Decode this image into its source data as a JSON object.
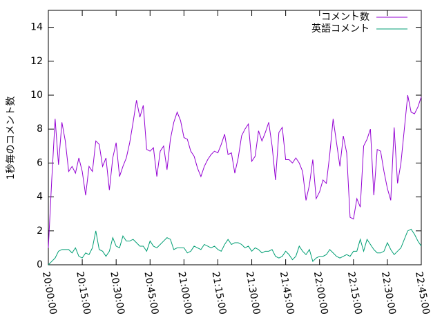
{
  "chart_data": {
    "type": "line",
    "ylabel": "1秒毎のコメント数",
    "x": [
      "20:00:00",
      "20:01:30",
      "20:03:00",
      "20:04:30",
      "20:06:00",
      "20:07:30",
      "20:09:00",
      "20:10:30",
      "20:12:00",
      "20:13:30",
      "20:15:00",
      "20:16:30",
      "20:18:00",
      "20:19:30",
      "20:21:00",
      "20:22:30",
      "20:24:00",
      "20:25:30",
      "20:27:00",
      "20:28:30",
      "20:30:00",
      "20:31:30",
      "20:33:00",
      "20:34:30",
      "20:36:00",
      "20:37:30",
      "20:39:00",
      "20:40:30",
      "20:42:00",
      "20:43:30",
      "20:45:00",
      "20:46:30",
      "20:48:00",
      "20:49:30",
      "20:51:00",
      "20:52:30",
      "20:54:00",
      "20:55:30",
      "20:57:00",
      "20:58:30",
      "21:00:00",
      "21:01:30",
      "21:03:00",
      "21:04:30",
      "21:06:00",
      "21:07:30",
      "21:09:00",
      "21:10:30",
      "21:12:00",
      "21:13:30",
      "21:15:00",
      "21:16:30",
      "21:18:00",
      "21:19:30",
      "21:21:00",
      "21:22:30",
      "21:24:00",
      "21:25:30",
      "21:27:00",
      "21:28:30",
      "21:30:00",
      "21:31:30",
      "21:33:00",
      "21:34:30",
      "21:36:00",
      "21:37:30",
      "21:39:00",
      "21:40:30",
      "21:42:00",
      "21:43:30",
      "21:45:00",
      "21:46:30",
      "21:48:00",
      "21:49:30",
      "21:51:00",
      "21:52:30",
      "21:54:00",
      "21:55:30",
      "21:57:00",
      "21:58:30",
      "22:00:00",
      "22:01:30",
      "22:03:00",
      "22:04:30",
      "22:06:00",
      "22:07:30",
      "22:09:00",
      "22:10:30",
      "22:12:00",
      "22:13:30",
      "22:15:00",
      "22:16:30",
      "22:18:00",
      "22:19:30",
      "22:21:00",
      "22:22:30",
      "22:24:00",
      "22:25:30",
      "22:27:00",
      "22:28:30",
      "22:30:00",
      "22:31:30",
      "22:33:00",
      "22:34:30",
      "22:36:00",
      "22:37:30",
      "22:39:00",
      "22:40:30",
      "22:42:00",
      "22:43:30",
      "22:45:00"
    ],
    "series": [
      {
        "name": "コメント数",
        "color": "#9400d3",
        "values": [
          1.0,
          5.0,
          8.6,
          5.9,
          8.4,
          7.3,
          5.5,
          5.8,
          5.4,
          6.3,
          5.5,
          4.1,
          5.8,
          5.5,
          7.3,
          7.1,
          5.8,
          6.3,
          4.4,
          6.3,
          7.2,
          5.2,
          5.8,
          6.3,
          7.2,
          8.4,
          9.7,
          8.7,
          9.4,
          6.8,
          6.7,
          6.9,
          5.2,
          6.7,
          7.0,
          5.6,
          7.4,
          8.4,
          9.0,
          8.5,
          7.5,
          7.4,
          6.7,
          6.4,
          5.7,
          5.2,
          5.8,
          6.2,
          6.5,
          6.7,
          6.6,
          7.1,
          7.7,
          6.5,
          6.6,
          5.4,
          6.3,
          7.6,
          8.0,
          8.3,
          6.1,
          6.4,
          7.9,
          7.3,
          7.8,
          8.4,
          7.0,
          5.0,
          7.8,
          8.1,
          6.2,
          6.2,
          6.0,
          6.3,
          6.0,
          5.5,
          3.8,
          4.7,
          6.2,
          3.9,
          4.3,
          5.0,
          4.8,
          6.5,
          8.6,
          7.2,
          5.8,
          7.6,
          6.6,
          2.8,
          2.7,
          3.9,
          3.4,
          7.0,
          7.4,
          8.0,
          4.1,
          6.8,
          6.7,
          5.5,
          4.5,
          3.8,
          8.1,
          4.8,
          6.0,
          8.0,
          10.0,
          9.0,
          8.9,
          9.3,
          9.9
        ]
      },
      {
        "name": "英語コメント",
        "color": "#009e73",
        "values": [
          0.0,
          0.2,
          0.4,
          0.8,
          0.9,
          0.9,
          0.9,
          0.7,
          1.0,
          0.5,
          0.4,
          0.7,
          0.6,
          1.0,
          2.0,
          0.9,
          0.8,
          0.5,
          0.8,
          1.6,
          1.1,
          1.0,
          1.7,
          1.4,
          1.4,
          1.5,
          1.3,
          1.1,
          1.1,
          0.8,
          1.4,
          1.1,
          1.0,
          1.2,
          1.4,
          1.6,
          1.5,
          0.9,
          1.0,
          1.0,
          1.0,
          0.7,
          0.8,
          1.1,
          1.0,
          0.9,
          1.2,
          1.1,
          1.0,
          1.1,
          0.9,
          0.8,
          1.2,
          1.5,
          1.2,
          1.3,
          1.3,
          1.2,
          1.0,
          1.1,
          0.8,
          1.0,
          0.9,
          0.7,
          0.8,
          0.8,
          0.9,
          0.5,
          0.4,
          0.5,
          0.8,
          0.6,
          0.3,
          0.5,
          1.1,
          0.8,
          0.6,
          0.9,
          0.2,
          0.4,
          0.5,
          0.5,
          0.6,
          0.9,
          0.7,
          0.5,
          0.4,
          0.5,
          0.6,
          0.5,
          0.8,
          0.8,
          1.5,
          0.8,
          1.5,
          1.2,
          0.9,
          0.7,
          0.7,
          0.8,
          1.3,
          0.9,
          0.6,
          0.8,
          1.0,
          1.5,
          2.0,
          2.1,
          1.8,
          1.4,
          1.1
        ]
      }
    ],
    "xlim": [
      "20:00:00",
      "22:45:00"
    ],
    "xticks": [
      "20:00:00",
      "20:15:00",
      "20:30:00",
      "20:45:00",
      "21:00:00",
      "21:15:00",
      "21:30:00",
      "21:45:00",
      "22:00:00",
      "22:15:00",
      "22:30:00",
      "22:45:00"
    ],
    "ylim": [
      0,
      15
    ],
    "yticks": [
      0,
      2,
      4,
      6,
      8,
      10,
      12,
      14
    ],
    "legend": "top-right"
  }
}
